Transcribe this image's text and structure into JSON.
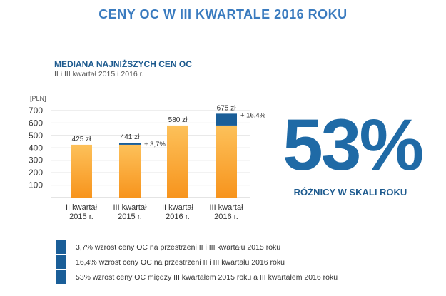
{
  "title": "CENY OC W III KWARTALE 2016 ROKU",
  "subtitle": "MEDIANA NAJNIŻSZYCH CEN OC",
  "subsubtitle": "II i III kwartał 2015 i 2016 r.",
  "big_stat": {
    "value": "53%",
    "caption": "RÓŻNICY W SKALI ROKU"
  },
  "colors": {
    "bar_top": "#fdc15a",
    "bar_bottom": "#f7941d",
    "increase": "#1a5e98",
    "accent": "#3a7bbf"
  },
  "chart_data": {
    "type": "bar",
    "ylabel": "[PLN]",
    "ylim": [
      0,
      700
    ],
    "yticks": [
      100,
      200,
      300,
      400,
      500,
      600,
      700
    ],
    "categories": [
      [
        "II kwartał",
        "2015 r."
      ],
      [
        "III kwartał",
        "2015 r."
      ],
      [
        "II kwartał",
        "2016 r."
      ],
      [
        "III kwartał",
        "2016 r."
      ]
    ],
    "series": [
      {
        "values": [
          425,
          425,
          580,
          580
        ]
      },
      {
        "values": [
          0,
          16,
          0,
          95
        ]
      }
    ],
    "totals": [
      425,
      441,
      580,
      675
    ],
    "value_labels": [
      "425 zł",
      "441 zł",
      "580 zł",
      "675 zł"
    ],
    "increase_labels": [
      "",
      "+ 3,7%",
      "",
      "+ 16,4%"
    ],
    "grid": true
  },
  "legend": [
    "3,7% wzrost ceny OC na przestrzeni II i III kwartału 2015 roku",
    "16,4% wzrost ceny OC na przestrzeni II i III kwartału 2016 roku",
    "53% wzrost ceny OC między III kwartałem 2015 roku a III kwartałem 2016 roku"
  ]
}
